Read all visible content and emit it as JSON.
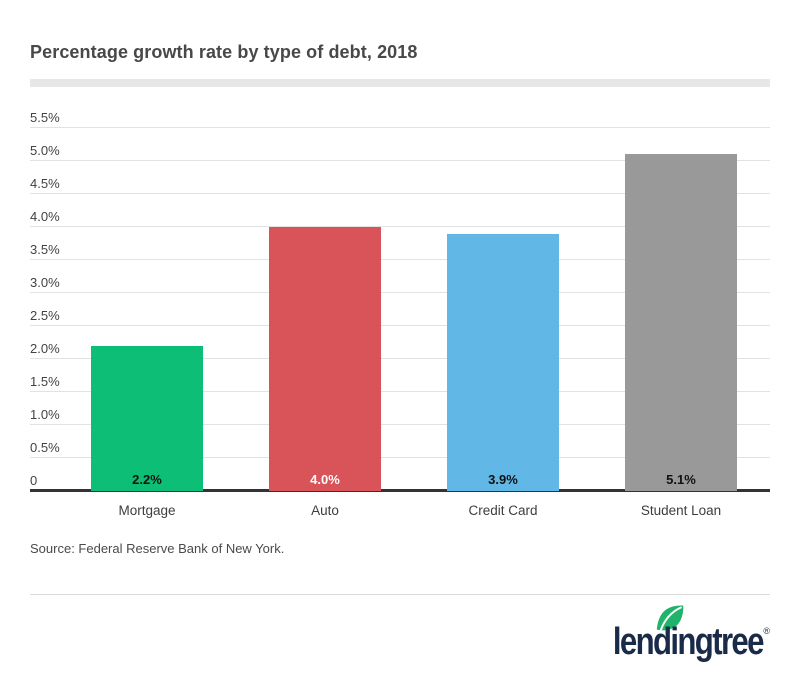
{
  "header": {
    "title": "Percentage growth rate by type of debt, 2018"
  },
  "chart_data": {
    "type": "bar",
    "title": "Percentage growth rate by type of debt, 2018",
    "categories": [
      "Mortgage",
      "Auto",
      "Credit Card",
      "Student Loan"
    ],
    "values": [
      2.2,
      4.0,
      3.9,
      5.1
    ],
    "bar_labels": [
      "2.2%",
      "4.0%",
      "3.9%",
      "5.1%"
    ],
    "bar_colors": [
      "#0dbf76",
      "#d95459",
      "#61b7e6",
      "#999999"
    ],
    "bar_label_colors": [
      "#111111",
      "#ffffff",
      "#111111",
      "#111111"
    ],
    "xlabel": "",
    "ylabel": "",
    "ylim": [
      0,
      5.5
    ],
    "grid": true,
    "legend_position": "none",
    "yticks": [
      {
        "value": 0,
        "label": "0"
      },
      {
        "value": 0.5,
        "label": "0.5%"
      },
      {
        "value": 1.0,
        "label": "1.0%"
      },
      {
        "value": 1.5,
        "label": "1.5%"
      },
      {
        "value": 2.0,
        "label": "2.0%"
      },
      {
        "value": 2.5,
        "label": "2.5%"
      },
      {
        "value": 3.0,
        "label": "3.0%"
      },
      {
        "value": 3.5,
        "label": "3.5%"
      },
      {
        "value": 4.0,
        "label": "4.0%"
      },
      {
        "value": 4.5,
        "label": "4.5%"
      },
      {
        "value": 5.0,
        "label": "5.0%"
      },
      {
        "value": 5.5,
        "label": "5.5%"
      }
    ]
  },
  "source": {
    "text": "Source: Federal Reserve Bank of New York."
  },
  "logo": {
    "brand": "lendingtree",
    "registered_mark": "®"
  },
  "colors": {
    "title": "#484848",
    "title_underline": "#e7e7e7",
    "gridline": "#e2e2e2",
    "axis_line": "#333333",
    "tick_label": "#424242",
    "logo_navy": "#1a2b49",
    "logo_leaf_green": "#1fb46a"
  }
}
